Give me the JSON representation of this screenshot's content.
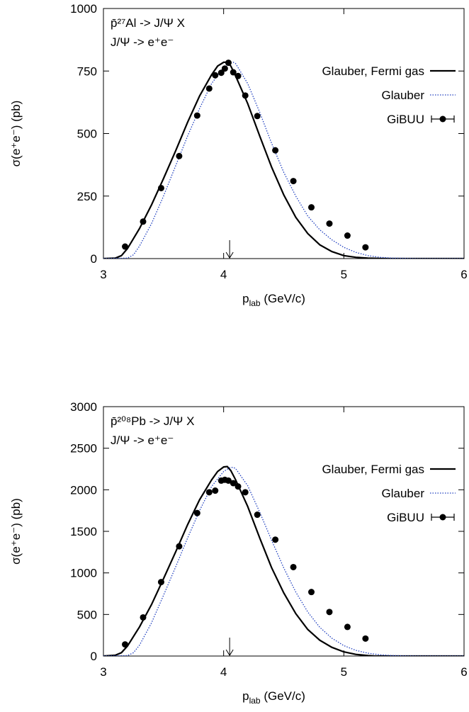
{
  "chart_data": [
    {
      "type": "line",
      "annotation": {
        "line1": "p̄²⁷Al -> J/Ψ X",
        "line2": "J/Ψ -> e⁺e⁻"
      },
      "xlabel": "p_lab (GeV/c)",
      "xlabel_main": "p",
      "xlabel_sub": "lab",
      "xlabel_rest": " (GeV/c)",
      "ylabel": "σ(e⁺e⁻) (pb)",
      "xlim": [
        3,
        6
      ],
      "ylim": [
        0,
        1000
      ],
      "xticks": [
        "3",
        "4",
        "5",
        "6"
      ],
      "yticks": [
        "0",
        "250",
        "500",
        "750",
        "1000"
      ],
      "grid": false,
      "legend_position": "top-right",
      "marker_arrow_x": 4.05,
      "series": [
        {
          "name": "Glauber, Fermi gas",
          "style": "solid",
          "color": "#000000",
          "x": [
            3.0,
            3.1,
            3.15,
            3.2,
            3.3,
            3.4,
            3.5,
            3.6,
            3.7,
            3.8,
            3.9,
            3.95,
            4.0,
            4.03,
            4.06,
            4.1,
            4.2,
            4.3,
            4.4,
            4.5,
            4.6,
            4.7,
            4.8,
            4.9,
            5.0,
            5.1,
            5.2,
            5.3,
            5.4,
            5.5,
            6.0
          ],
          "y": [
            0,
            2,
            12,
            40,
            120,
            215,
            320,
            430,
            545,
            650,
            735,
            770,
            785,
            785,
            770,
            730,
            620,
            490,
            365,
            255,
            165,
            100,
            55,
            28,
            12,
            5,
            2,
            0.5,
            0,
            0,
            0
          ]
        },
        {
          "name": "Glauber",
          "style": "dotted",
          "color": "#1f3fbf",
          "x": [
            3.0,
            3.2,
            3.25,
            3.3,
            3.4,
            3.5,
            3.6,
            3.7,
            3.8,
            3.9,
            4.0,
            4.05,
            4.08,
            4.1,
            4.2,
            4.3,
            4.4,
            4.5,
            4.6,
            4.7,
            4.8,
            4.9,
            5.0,
            5.1,
            5.2,
            5.3,
            5.4,
            5.5,
            5.6,
            6.0
          ],
          "y": [
            0,
            2,
            15,
            50,
            140,
            250,
            370,
            490,
            600,
            700,
            765,
            782,
            785,
            780,
            700,
            585,
            460,
            345,
            250,
            170,
            115,
            75,
            45,
            25,
            12,
            5,
            2,
            1,
            0,
            0
          ]
        },
        {
          "name": "GiBUU",
          "style": "points",
          "color": "#000000",
          "x": [
            3.18,
            3.33,
            3.48,
            3.63,
            3.78,
            3.88,
            3.93,
            3.98,
            4.01,
            4.04,
            4.08,
            4.12,
            4.18,
            4.28,
            4.43,
            4.58,
            4.73,
            4.88,
            5.03,
            5.18
          ],
          "y": [
            48,
            148,
            282,
            410,
            572,
            680,
            733,
            743,
            760,
            783,
            745,
            730,
            652,
            570,
            433,
            310,
            205,
            140,
            92,
            45
          ]
        }
      ]
    },
    {
      "type": "line",
      "annotation": {
        "line1": "p̄²⁰⁸Pb -> J/Ψ X",
        "line2": "J/Ψ -> e⁺e⁻"
      },
      "xlabel": "p_lab (GeV/c)",
      "xlabel_main": "p",
      "xlabel_sub": "lab",
      "xlabel_rest": " (GeV/c)",
      "ylabel": "σ(e⁺e⁻) (pb)",
      "xlim": [
        3,
        6
      ],
      "ylim": [
        0,
        3000
      ],
      "xticks": [
        "3",
        "4",
        "5",
        "6"
      ],
      "yticks": [
        "0",
        "500",
        "1000",
        "1500",
        "2000",
        "2500",
        "3000"
      ],
      "grid": false,
      "legend_position": "top-right",
      "marker_arrow_x": 4.05,
      "series": [
        {
          "name": "Glauber, Fermi gas",
          "style": "solid",
          "color": "#000000",
          "x": [
            3.0,
            3.1,
            3.15,
            3.2,
            3.3,
            3.4,
            3.5,
            3.6,
            3.7,
            3.8,
            3.9,
            3.95,
            4.0,
            4.03,
            4.06,
            4.1,
            4.2,
            4.3,
            4.4,
            4.5,
            4.6,
            4.7,
            4.8,
            4.9,
            5.0,
            5.1,
            5.2,
            5.25,
            5.3,
            6.0
          ],
          "y": [
            0,
            10,
            40,
            120,
            350,
            620,
            930,
            1250,
            1580,
            1880,
            2120,
            2220,
            2275,
            2280,
            2230,
            2120,
            1800,
            1420,
            1060,
            760,
            510,
            320,
            190,
            105,
            50,
            20,
            5,
            1,
            0,
            0
          ]
        },
        {
          "name": "Glauber",
          "style": "dotted",
          "color": "#1f3fbf",
          "x": [
            3.0,
            3.2,
            3.25,
            3.3,
            3.4,
            3.5,
            3.6,
            3.7,
            3.8,
            3.9,
            4.0,
            4.05,
            4.08,
            4.1,
            4.2,
            4.3,
            4.4,
            4.5,
            4.6,
            4.7,
            4.8,
            4.9,
            5.0,
            5.1,
            5.2,
            5.3,
            5.4,
            5.5,
            5.6,
            6.0
          ],
          "y": [
            0,
            5,
            40,
            130,
            400,
            730,
            1070,
            1420,
            1750,
            2040,
            2220,
            2265,
            2270,
            2255,
            2050,
            1730,
            1390,
            1060,
            770,
            530,
            345,
            215,
            125,
            68,
            34,
            15,
            6,
            2,
            0,
            0
          ]
        },
        {
          "name": "GiBUU",
          "style": "points",
          "color": "#000000",
          "x": [
            3.18,
            3.33,
            3.48,
            3.63,
            3.78,
            3.88,
            3.93,
            3.98,
            4.01,
            4.04,
            4.08,
            4.12,
            4.18,
            4.28,
            4.43,
            4.58,
            4.73,
            4.88,
            5.03,
            5.18
          ],
          "y": [
            140,
            465,
            890,
            1320,
            1720,
            1970,
            1990,
            2110,
            2120,
            2110,
            2080,
            2040,
            1970,
            1700,
            1400,
            1070,
            770,
            530,
            350,
            210
          ]
        }
      ]
    }
  ]
}
